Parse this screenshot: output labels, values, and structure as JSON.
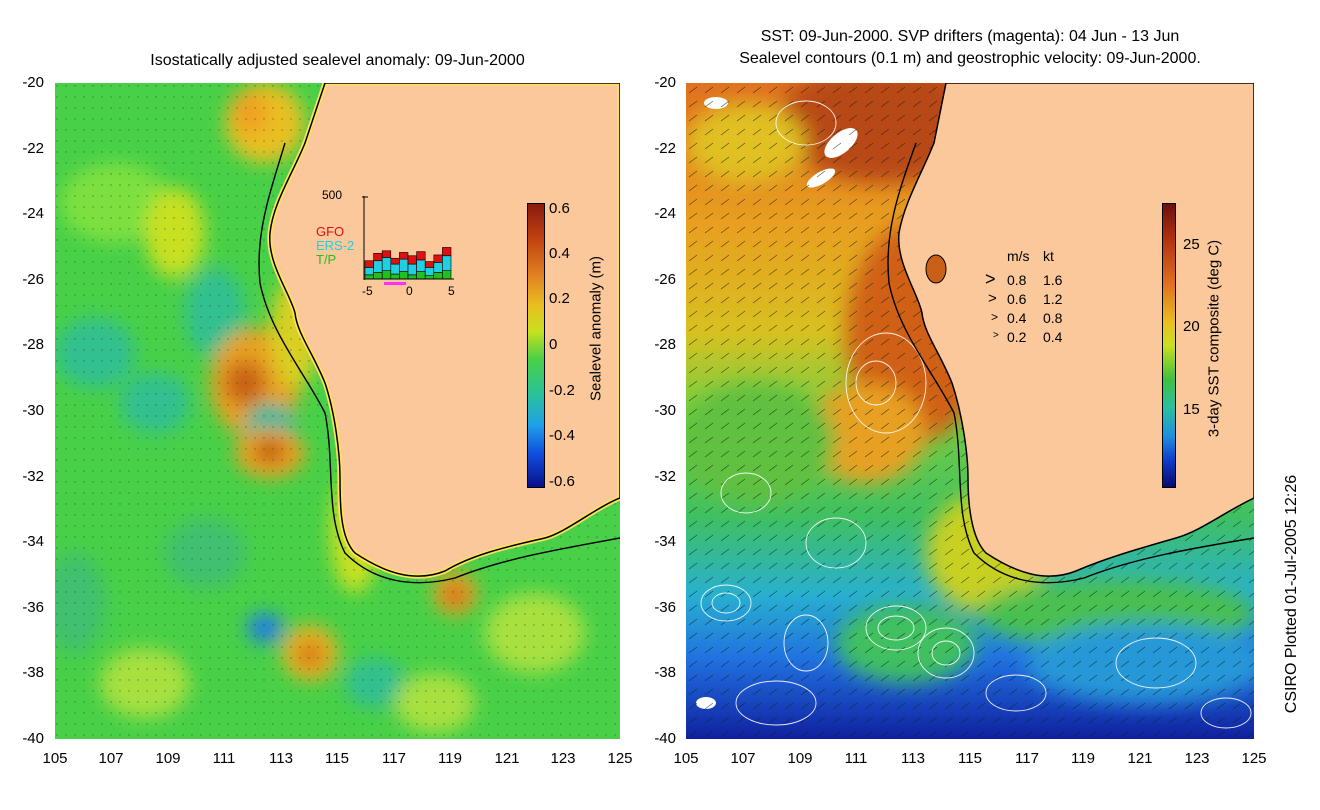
{
  "left_panel": {
    "title": "Isostatically adjusted sealevel anomaly: 09-Jun-2000",
    "y_ticks": [
      "-20",
      "-22",
      "-24",
      "-26",
      "-28",
      "-30",
      "-32",
      "-34",
      "-36",
      "-38",
      "-40"
    ],
    "x_ticks": [
      "105",
      "107",
      "109",
      "111",
      "113",
      "115",
      "117",
      "119",
      "121",
      "123",
      "125"
    ],
    "colorbar": {
      "label": "Sealevel anomaly (m)",
      "ticks": [
        "0.6",
        "0.4",
        "0.2",
        "0",
        "-0.2",
        "-0.4",
        "-0.6"
      ]
    },
    "inset": {
      "y_max_label": "500",
      "legend": [
        {
          "name": "GFO",
          "color": "#e01010"
        },
        {
          "name": "ERS-2",
          "color": "#20d0e0"
        },
        {
          "name": "T/P",
          "color": "#20c020"
        }
      ],
      "x_ticks": [
        "-5",
        "0",
        "5"
      ],
      "bars": [
        {
          "tp": 25,
          "ers": 45,
          "gfo": 40
        },
        {
          "tp": 40,
          "ers": 70,
          "gfo": 45
        },
        {
          "tp": 50,
          "ers": 80,
          "gfo": 40
        },
        {
          "tp": 30,
          "ers": 60,
          "gfo": 35
        },
        {
          "tp": 45,
          "ers": 75,
          "gfo": 40
        },
        {
          "tp": 25,
          "ers": 65,
          "gfo": 50
        },
        {
          "tp": 45,
          "ers": 70,
          "gfo": 50
        },
        {
          "tp": 20,
          "ers": 50,
          "gfo": 35
        },
        {
          "tp": 40,
          "ers": 60,
          "gfo": 45
        },
        {
          "tp": 50,
          "ers": 90,
          "gfo": 50
        }
      ]
    }
  },
  "right_panel": {
    "title_line1": "SST: 09-Jun-2000. SVP drifters (magenta): 04 Jun - 13 Jun",
    "title_line2": "Sealevel contours (0.1 m) and geostrophic velocity: 09-Jun-2000.",
    "y_ticks": [
      "-20",
      "-22",
      "-24",
      "-26",
      "-28",
      "-30",
      "-32",
      "-34",
      "-36",
      "-38",
      "-40"
    ],
    "x_ticks": [
      "105",
      "107",
      "109",
      "111",
      "113",
      "115",
      "117",
      "119",
      "121",
      "123",
      "125"
    ],
    "colorbar": {
      "label": "3-day SST composite (deg C)",
      "ticks": [
        "25",
        "20",
        "15"
      ]
    },
    "velocity_legend": {
      "header_ms": "m/s",
      "header_kt": "kt",
      "rows": [
        {
          "ms": "0.8",
          "kt": "1.6"
        },
        {
          "ms": "0.6",
          "kt": "1.2"
        },
        {
          "ms": "0.4",
          "kt": "0.8"
        },
        {
          "ms": "0.2",
          "kt": "0.4"
        }
      ]
    }
  },
  "footer_credit": "CSIRO Plotted 01-Jul-2005 12:26",
  "colors": {
    "land": "#fbc89b",
    "anomaly_base": "#48d048",
    "sst_warm": "#c8501c",
    "sst_cool": "#28a8e0",
    "sst_cold": "#1020a0"
  }
}
